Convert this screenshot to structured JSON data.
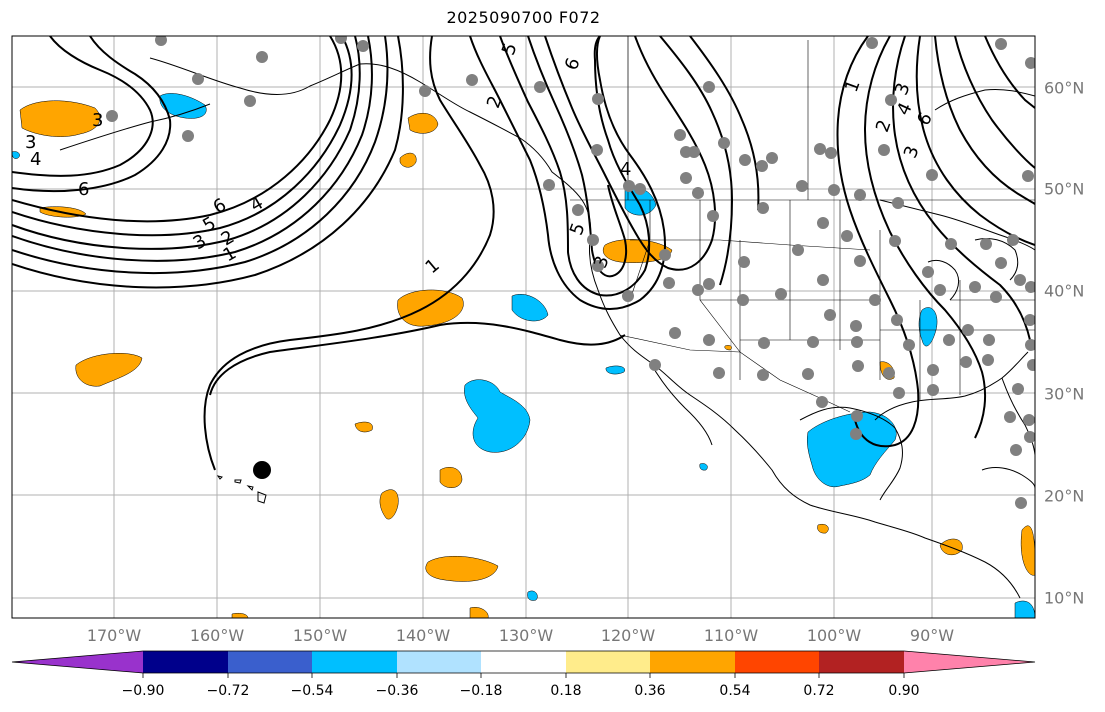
{
  "title": "2025090700 F072",
  "longitude_labels": [
    "170°W",
    "160°W",
    "150°W",
    "140°W",
    "130°W",
    "120°W",
    "110°W",
    "100°W",
    "90°W"
  ],
  "latitude_labels": [
    "60°N",
    "50°N",
    "40°N",
    "30°N",
    "20°N",
    "10°N"
  ],
  "colorbar": {
    "tick_labels": [
      "−0.90",
      "−0.72",
      "−0.54",
      "−0.36",
      "−0.18",
      "0.18",
      "0.36",
      "0.54",
      "0.72",
      "0.90"
    ],
    "colors": [
      "#9932cc",
      "#00008b",
      "#3a5fcd",
      "#00bfff",
      "#b0e2ff",
      "#ffffff",
      "#ffec8b",
      "#ffa500",
      "#ff4500",
      "#b22222",
      "#ff82ab"
    ]
  },
  "contour_labels": [
    "3",
    "4",
    "6",
    "5",
    "3",
    "2",
    "1",
    "1",
    "4",
    "6",
    "3",
    "5",
    "6",
    "4",
    "5",
    "1",
    "3",
    "2",
    "3",
    "6",
    "4",
    "2",
    "3"
  ],
  "colors": {
    "ocean_positive": "#ffa500",
    "ocean_negative": "#00bfff",
    "station": "#808080",
    "grid": "#b0b0b0"
  }
}
